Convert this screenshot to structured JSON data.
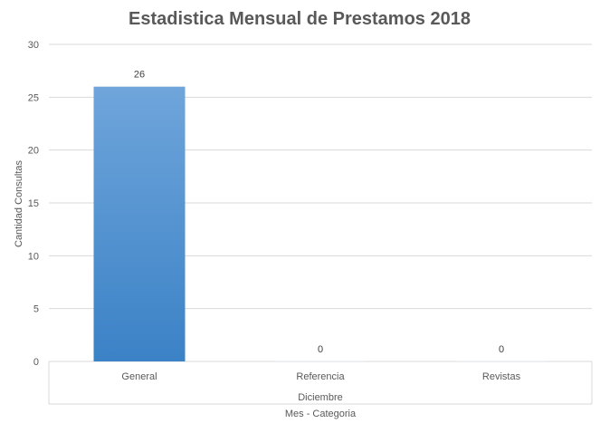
{
  "chart_data": {
    "type": "bar",
    "title": "Estadistica Mensual de Prestamos 2018",
    "ylabel": "Cantidad Consultas",
    "xlabel": "Mes - Categoria",
    "group_label": "Diciembre",
    "categories": [
      "General",
      "Referencia",
      "Revistas"
    ],
    "values": [
      26,
      0,
      0
    ],
    "data_labels": [
      "26",
      "0",
      "0"
    ],
    "ylim": [
      0,
      30
    ],
    "yticks": [
      0,
      5,
      10,
      15,
      20,
      25,
      30
    ],
    "ytick_labels": [
      "0",
      "5",
      "10",
      "15",
      "20",
      "25",
      "30"
    ],
    "grid": true,
    "legend": "none",
    "bar_color_top": "#6fa5db",
    "bar_color_bottom": "#3b82c6"
  }
}
